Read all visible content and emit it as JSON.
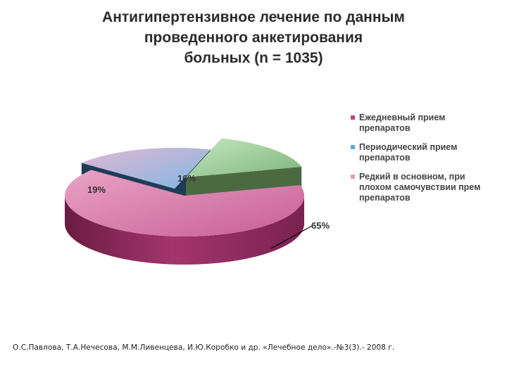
{
  "title_lines": [
    "Антигипертензивное лечение по данным",
    "проведенного анкетирования",
    "больных (n = 1035)"
  ],
  "chart_data": {
    "type": "pie",
    "title": "Антигипертензивное лечение по данным проведенного анкетирования больных (n = 1035)",
    "slices": [
      {
        "name": "Ежедневный прием препаратов",
        "value": 65,
        "label": "65%",
        "color": "#c0457e"
      },
      {
        "name": "Периодический прием препаратов",
        "value": 19,
        "label": "19%",
        "color": "#62a8dd"
      },
      {
        "name": "Редкий в основном, при плохом самочувствии прем препаратов",
        "value": 16,
        "label": "16%",
        "color": "#8fc88c"
      }
    ],
    "legend_position": "right"
  },
  "legend": [
    {
      "lines": [
        "Ежедневный прием",
        "препаратов"
      ],
      "color": "#c0457e"
    },
    {
      "lines": [
        "Периодический прием",
        "препаратов"
      ],
      "color": "#62a8dd"
    },
    {
      "lines": [
        "Редкий в основном, при",
        "плохом самочувствии прем",
        "препаратов"
      ],
      "color": "#e19cbd"
    }
  ],
  "source": "О.С.Павлова, Т.А.Нечесова, М.М.Ливенцева, И.Ю.Коробко и др. «Лечебное дело».-№3(3).- 2008 г."
}
